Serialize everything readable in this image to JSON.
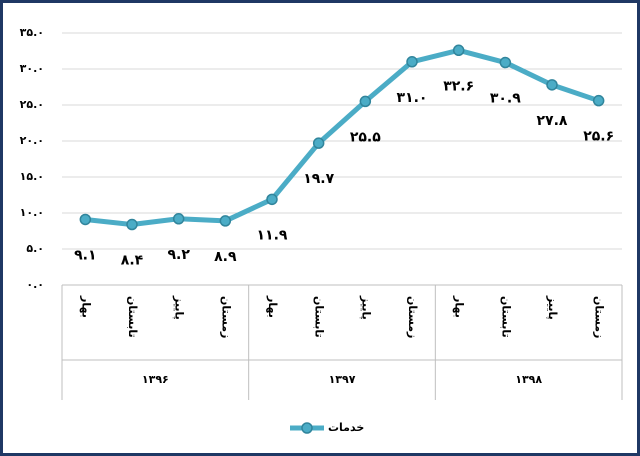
{
  "chart_data": {
    "type": "line",
    "categories": [
      "بهار",
      "تابستان",
      "پاییز",
      "زمستان",
      "بهار",
      "تابستان",
      "پاییز",
      "زمستان",
      "بهار",
      "تابستان",
      "پاییز",
      "زمستان"
    ],
    "group_labels": [
      "۱۳۹۶",
      "۱۳۹۷",
      "۱۳۹۸"
    ],
    "series": [
      {
        "name": "خدمات",
        "color": "#4bacc6",
        "values": [
          9.1,
          8.4,
          9.2,
          8.9,
          11.9,
          19.7,
          25.5,
          31.0,
          32.6,
          30.9,
          27.8,
          25.6
        ],
        "value_labels": [
          "۹.۱",
          "۸.۴",
          "۹.۲",
          "۸.۹",
          "۱۱.۹",
          "۱۹.۷",
          "۲۵.۵",
          "۳۱.۰",
          "۳۲.۶",
          "۳۰.۹",
          "۲۷.۸",
          "۲۵.۶"
        ]
      }
    ],
    "ylim": [
      0,
      35
    ],
    "yticks": [
      {
        "value": 0,
        "label": "۰.۰"
      },
      {
        "value": 5,
        "label": "۵.۰"
      },
      {
        "value": 10,
        "label": "۱۰.۰"
      },
      {
        "value": 15,
        "label": "۱۵.۰"
      },
      {
        "value": 20,
        "label": "۲۰.۰"
      },
      {
        "value": 25,
        "label": "۲۵.۰"
      },
      {
        "value": 30,
        "label": "۳۰.۰"
      },
      {
        "value": 35,
        "label": "۳۵.۰"
      }
    ],
    "grid": true,
    "legend": "bottom"
  }
}
